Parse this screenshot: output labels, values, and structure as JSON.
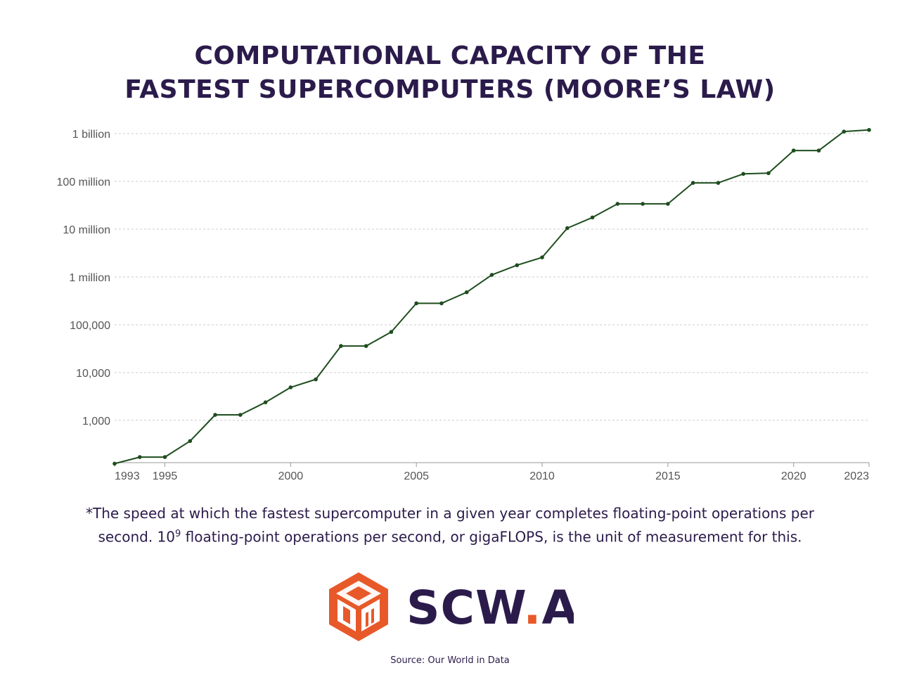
{
  "title_line1": "COMPUTATIONAL CAPACITY OF THE",
  "title_line2": "FASTEST SUPERCOMPUTERS (MOORE’S LAW)",
  "footnote_part1": "*The speed at which the fastest supercomputer in a given year completes floating-point operations per second. 10",
  "footnote_sup": "9",
  "footnote_part2": " floating-point operations per second, or gigaFLOPS, is the unit of measurement for this.",
  "logo": {
    "text": "SCW",
    "dot": ".",
    "text2": "AI",
    "icon": "box-cube-logo-icon"
  },
  "source": "Source: Our World in Data",
  "colors": {
    "line": "#1e4d1e",
    "title": "#2b1b4b",
    "logo_orange": "#e8592a",
    "logo_purple": "#2b1b4b",
    "grid": "#cccccc"
  },
  "chart_data": {
    "type": "line",
    "scale_y": "log",
    "ylim": [
      130,
      1000000000
    ],
    "xlim": [
      1993,
      2023
    ],
    "grid": "horizontal dashed",
    "y_ticks": [
      {
        "value": 1000,
        "label": "1,000"
      },
      {
        "value": 10000,
        "label": "10,000"
      },
      {
        "value": 100000,
        "label": "100,000"
      },
      {
        "value": 1000000,
        "label": "1 million"
      },
      {
        "value": 10000000,
        "label": "10 million"
      },
      {
        "value": 100000000,
        "label": "100 million"
      },
      {
        "value": 1000000000,
        "label": "1 billion"
      }
    ],
    "x_ticks": [
      {
        "value": 1993,
        "label": "1993"
      },
      {
        "value": 1995,
        "label": "1995"
      },
      {
        "value": 2000,
        "label": "2000"
      },
      {
        "value": 2005,
        "label": "2005"
      },
      {
        "value": 2010,
        "label": "2010"
      },
      {
        "value": 2015,
        "label": "2015"
      },
      {
        "value": 2020,
        "label": "2020"
      },
      {
        "value": 2023,
        "label": "2023"
      }
    ],
    "x": [
      1993,
      1994,
      1995,
      1996,
      1997,
      1998,
      1999,
      2000,
      2001,
      2002,
      2003,
      2004,
      2005,
      2006,
      2007,
      2008,
      2009,
      2010,
      2011,
      2012,
      2013,
      2014,
      2015,
      2016,
      2017,
      2018,
      2019,
      2020,
      2021,
      2022,
      2023
    ],
    "values": [
      124,
      170,
      170,
      368,
      1300,
      1300,
      2380,
      4900,
      7200,
      35900,
      35900,
      70700,
      280600,
      280600,
      478200,
      1105000,
      1759000,
      2566000,
      10510000,
      17590000,
      33860000,
      33860000,
      33860000,
      93010000,
      93010000,
      143500000,
      148600000,
      442000000,
      442000000,
      1102000000,
      1194000000
    ]
  }
}
